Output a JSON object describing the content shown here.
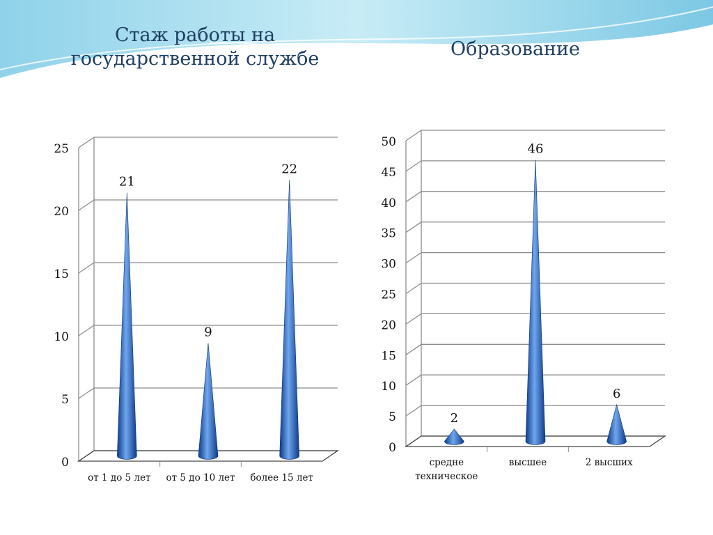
{
  "slide": {
    "title_left": "Стаж работы на государственной службе",
    "title_right": "Образование"
  },
  "colors": {
    "title": "#1f3f63",
    "cone_dark": "#0d3a8a",
    "cone_light": "#6fa6ec",
    "grid": "#8c8c8c",
    "header_wave": "#9fd9ee"
  },
  "chart_data": [
    {
      "type": "bar",
      "shape": "cone",
      "title": "Стаж работы на государственной службе",
      "categories": [
        "от 1 до 5 лет",
        "от 5 до 10 лет",
        "более 15 лет"
      ],
      "values": [
        21,
        9,
        22
      ],
      "ylim": [
        0,
        25
      ],
      "yticks": [
        0,
        5,
        10,
        15,
        20,
        25
      ],
      "data_labels": [
        "21",
        "9",
        "22"
      ],
      "grid": true,
      "legend": "none"
    },
    {
      "type": "bar",
      "shape": "cone",
      "title": "Образование",
      "categories": [
        "средне техническое",
        "высшее",
        "2 высших"
      ],
      "values": [
        2,
        46,
        6
      ],
      "ylim": [
        0,
        50
      ],
      "yticks": [
        0,
        5,
        10,
        15,
        20,
        25,
        30,
        35,
        40,
        45,
        50
      ],
      "data_labels": [
        "2",
        "46",
        "6"
      ],
      "grid": true,
      "legend": "none"
    }
  ]
}
